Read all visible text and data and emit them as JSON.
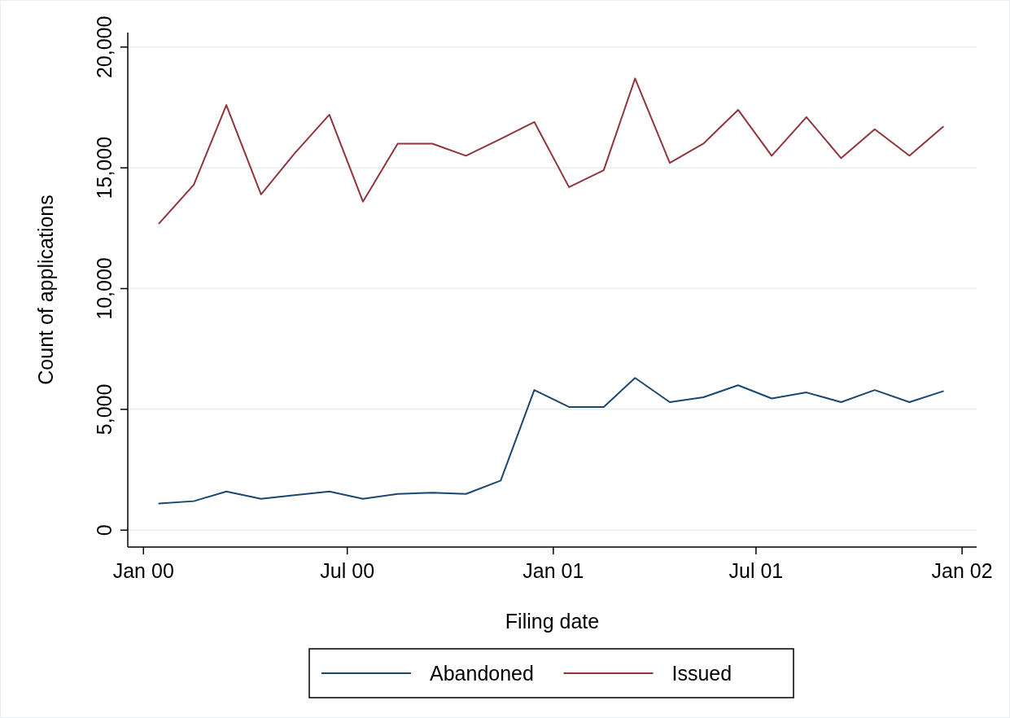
{
  "chart_data": {
    "type": "line",
    "xlabel": "Filing date",
    "ylabel": "Count of applications",
    "x": [
      "2000-01-15",
      "2000-02-15",
      "2000-03-15",
      "2000-04-15",
      "2000-05-15",
      "2000-06-15",
      "2000-07-15",
      "2000-08-15",
      "2000-09-15",
      "2000-10-15",
      "2000-11-15",
      "2000-12-15",
      "2001-01-15",
      "2001-02-15",
      "2001-03-15",
      "2001-04-15",
      "2001-05-15",
      "2001-06-15",
      "2001-07-15",
      "2001-08-15",
      "2001-09-15",
      "2001-10-15",
      "2001-11-15",
      "2001-12-15"
    ],
    "series": [
      {
        "name": "Abandoned",
        "color": "#1a476f",
        "values": [
          1100,
          1200,
          1600,
          1300,
          1450,
          1600,
          1300,
          1500,
          1550,
          1500,
          2050,
          5800,
          5100,
          5100,
          6300,
          5300,
          5500,
          6000,
          5450,
          5700,
          5300,
          5800,
          5300,
          5750
        ]
      },
      {
        "name": "Issued",
        "color": "#90353b",
        "values": [
          12700,
          14300,
          17600,
          13900,
          15600,
          17200,
          13600,
          16000,
          16000,
          15500,
          16200,
          16900,
          14200,
          14900,
          18700,
          15200,
          16000,
          17400,
          15500,
          17100,
          15400,
          16600,
          15500,
          16700
        ]
      }
    ],
    "xlim": [
      "1999-12-18",
      "2002-01-14"
    ],
    "xticks": [
      {
        "value": "2000-01-01",
        "label": "Jan 00"
      },
      {
        "value": "2000-07-01",
        "label": "Jul 00"
      },
      {
        "value": "2001-01-01",
        "label": "Jan 01"
      },
      {
        "value": "2001-07-01",
        "label": "Jul 01"
      },
      {
        "value": "2002-01-01",
        "label": "Jan 02"
      }
    ],
    "ylim": [
      -700,
      20600
    ],
    "yticks": [
      {
        "value": 0,
        "label": "0"
      },
      {
        "value": 5000,
        "label": "5,000"
      },
      {
        "value": 10000,
        "label": "10,000"
      },
      {
        "value": 15000,
        "label": "15,000"
      },
      {
        "value": 20000,
        "label": "20,000"
      }
    ],
    "grid": "y",
    "legend": "bottom",
    "marker": "none",
    "line_style": "solid"
  }
}
